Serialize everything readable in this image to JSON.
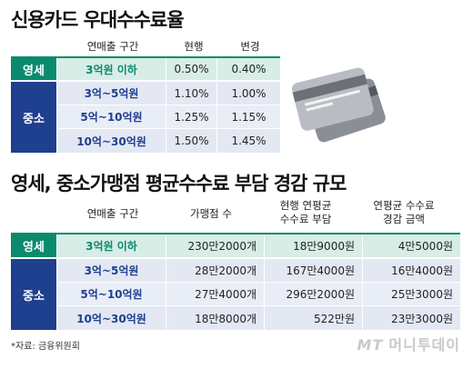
{
  "title1": "신용카드 우대수수료율",
  "table1": {
    "headers": [
      "연매출 구간",
      "현행",
      "변경"
    ],
    "rows": [
      {
        "category": "영세",
        "range": "3억원 이하",
        "current": "0.50%",
        "changed": "0.40%"
      },
      {
        "category": "중소",
        "range": "3억~5억원",
        "current": "1.10%",
        "changed": "1.00%"
      },
      {
        "category": "",
        "range": "5억~10억원",
        "current": "1.25%",
        "changed": "1.15%"
      },
      {
        "category": "",
        "range": "10억~30억원",
        "current": "1.50%",
        "changed": "1.45%"
      }
    ]
  },
  "title2": "영세, 중소가맹점 평균수수료 부담 경감 규모",
  "table2": {
    "headers": [
      "연매출 구간",
      "가맹점 수",
      "현행 연평균 수수료 부담",
      "연평균 수수료 경감 금액"
    ],
    "header_lines": {
      "h3a": "현행 연평균",
      "h3b": "수수료 부담",
      "h4a": "연평균 수수료",
      "h4b": "경감 금액"
    },
    "rows": [
      {
        "category": "영세",
        "range": "3억원 이하",
        "stores": "230만2000개",
        "burden": "18만9000원",
        "reduction": "4만5000원"
      },
      {
        "category": "중소",
        "range": "3억~5억원",
        "stores": "28만2000개",
        "burden": "167만4000원",
        "reduction": "16만4000원"
      },
      {
        "category": "",
        "range": "5억~10억원",
        "stores": "27만4000개",
        "burden": "296만2000원",
        "reduction": "25만3000원"
      },
      {
        "category": "",
        "range": "10억~30억원",
        "stores": "18만8000개",
        "burden": "522만원",
        "reduction": "23만3000원"
      }
    ]
  },
  "source": "*자료: 금융위원회",
  "logo": {
    "mark": "MT",
    "name": "머니투데이"
  },
  "colors": {
    "green": "#0b8a6e",
    "navy": "#1f3f8f",
    "green_bg": "#d7ede6",
    "blue_bg": "#e3e8f3"
  }
}
